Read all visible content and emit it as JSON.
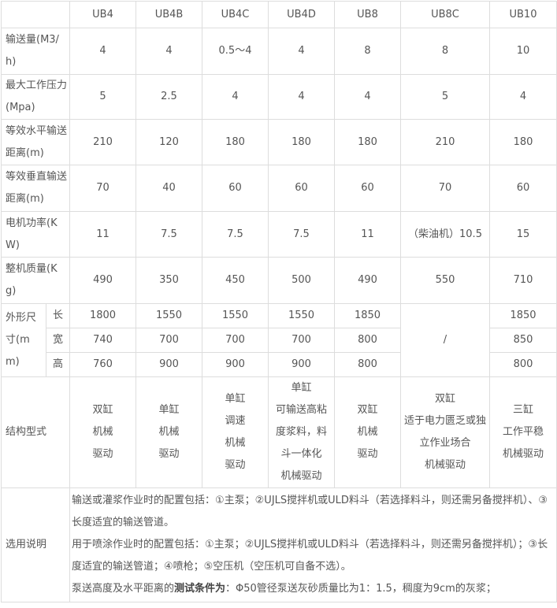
{
  "models": [
    "UB4",
    "UB4B",
    "UB4C",
    "UB4D",
    "UB8",
    "UB8C",
    "UB10"
  ],
  "rows": [
    {
      "label": "输送量(M3/h)",
      "values": [
        "4",
        "4",
        "0.5～4",
        "4",
        "8",
        "8",
        "10"
      ]
    },
    {
      "label": "最大工作压力(Mpa)",
      "values": [
        "5",
        "2.5",
        "4",
        "4",
        "4",
        "5",
        "4"
      ]
    },
    {
      "label": "等效水平输送距离(m)",
      "values": [
        "210",
        "120",
        "180",
        "180",
        "180",
        "210",
        "180"
      ]
    },
    {
      "label": "等效垂直输送距离(m)",
      "values": [
        "70",
        "40",
        "60",
        "60",
        "60",
        "70",
        "60"
      ]
    },
    {
      "label": "电机功率(KW)",
      "values": [
        "11",
        "7.5",
        "7.5",
        "7.5",
        "11",
        "（柴油机）10.5",
        "15"
      ]
    },
    {
      "label": "整机质量(Kg)",
      "values": [
        "490",
        "350",
        "450",
        "500",
        "490",
        "550",
        "710"
      ]
    }
  ],
  "dimensions": {
    "label": "外形尺寸(mm)",
    "ub8c": "/",
    "rows": [
      {
        "label": "长",
        "values": [
          "1800",
          "1550",
          "1550",
          "1550",
          "1850",
          "1850"
        ]
      },
      {
        "label": "宽",
        "values": [
          "740",
          "700",
          "700",
          "700",
          "800",
          "850"
        ]
      },
      {
        "label": "高",
        "values": [
          "760",
          "900",
          "900",
          "900",
          "800",
          "800"
        ]
      }
    ]
  },
  "structure": {
    "label": "结构型式",
    "values": [
      "双缸\n机械\n驱动",
      "单缸\n机械\n驱动",
      "单缸\n调速\n机械\n驱动",
      "单缸\n可输送高粘度浆料，料斗一体化\n机械驱动",
      "双缸\n机械\n驱动",
      "双缸\n适于电力匮乏或独立作业场合\n机械驱动",
      "三缸\n工作平稳\n机械驱动"
    ]
  },
  "notes": {
    "label": "选用说明",
    "line1": "输送或灌浆作业时的配置包括：①主泵；②UJLS搅拌机或ULD料斗（若选择料斗，则还需另备搅拌机）、③长度适宜的输送管道。",
    "line2": "用于喷涂作业时的配置包括：①主泵；②UJLS搅拌机或ULD料斗（若选择料斗，则还需另备搅拌机）；③长度适宜的输送管道；④喷枪；⑤空压机（空压机可自备不选）。",
    "line3_prefix": "泵送高度及水平距离的",
    "line3_bold": "测试条件为",
    "line3_rest": "：Φ50管径泵送灰砂质量比为1：1.5，稠度为9cm的灰浆；"
  }
}
